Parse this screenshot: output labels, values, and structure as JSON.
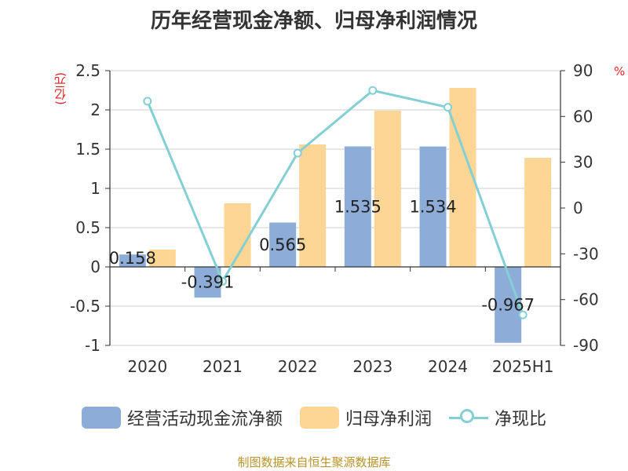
{
  "title": "历年经营现金净额、归母净利润情况",
  "left_unit": "(亿元)",
  "right_unit": "%",
  "source": "制图数据来自恒生聚源数据库",
  "colors": {
    "cash": "#8eacd8",
    "profit": "#fdd696",
    "ratio": "#83d0d4",
    "unit": "#e02020",
    "source": "#b8932a"
  },
  "legend": [
    {
      "label": "经营活动现金流净额",
      "color": "#8eacd8",
      "kind": "bar"
    },
    {
      "label": "归母净利润",
      "color": "#fdd696",
      "kind": "bar"
    },
    {
      "label": "净现比",
      "color": "#83d0d4",
      "kind": "line"
    }
  ],
  "chart_data": {
    "type": "bar",
    "categories": [
      "2020",
      "2021",
      "2022",
      "2023",
      "2024",
      "2025H1"
    ],
    "series": [
      {
        "name": "经营活动现金流净额",
        "axis": "left",
        "type": "bar",
        "values": [
          0.158,
          -0.391,
          0.565,
          1.535,
          1.534,
          -0.967
        ],
        "labels": [
          "0.158",
          "-0.391",
          "0.565",
          "1.535",
          "1.534",
          "-0.967"
        ]
      },
      {
        "name": "归母净利润",
        "axis": "left",
        "type": "bar",
        "values": [
          0.22,
          0.81,
          1.56,
          1.99,
          2.28,
          1.39
        ]
      },
      {
        "name": "净现比",
        "axis": "right",
        "type": "line",
        "values": [
          70,
          -48,
          36,
          77,
          66,
          -70
        ]
      }
    ],
    "y_left": {
      "min": -1,
      "max": 2.5,
      "ticks": [
        "2.5",
        "2",
        "1.5",
        "1",
        "0.5",
        "0",
        "-0.5",
        "-1"
      ]
    },
    "y_right": {
      "min": -90,
      "max": 90,
      "ticks": [
        "90",
        "60",
        "30",
        "0",
        "-30",
        "-60",
        "-90"
      ]
    },
    "grid": true,
    "legend_position": "bottom"
  }
}
